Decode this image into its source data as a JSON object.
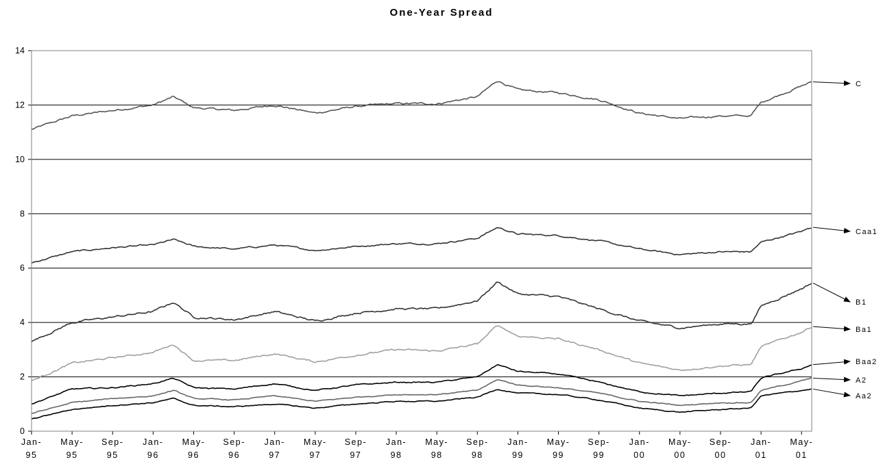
{
  "chart_data": {
    "type": "line",
    "title": "One-Year Spread",
    "xlabel": "",
    "ylabel": "",
    "ylim": [
      0,
      14
    ],
    "yticks": [
      0,
      2,
      4,
      6,
      8,
      10,
      12,
      14
    ],
    "x_range": [
      "1995-01",
      "2001-06"
    ],
    "x_tick_labels": [
      [
        "Jan-",
        "95"
      ],
      [
        "May-",
        "95"
      ],
      [
        "Sep-",
        "95"
      ],
      [
        "Jan-",
        "96"
      ],
      [
        "May-",
        "96"
      ],
      [
        "Sep-",
        "96"
      ],
      [
        "Jan-",
        "97"
      ],
      [
        "May-",
        "97"
      ],
      [
        "Sep-",
        "97"
      ],
      [
        "Jan-",
        "98"
      ],
      [
        "May-",
        "98"
      ],
      [
        "Sep-",
        "98"
      ],
      [
        "Jan-",
        "99"
      ],
      [
        "May-",
        "99"
      ],
      [
        "Sep-",
        "99"
      ],
      [
        "Jan-",
        "00"
      ],
      [
        "May-",
        "00"
      ],
      [
        "Sep-",
        "00"
      ],
      [
        "Jan-",
        "01"
      ],
      [
        "May-",
        "01"
      ]
    ],
    "grid": "horizontal major gridlines",
    "legend": "series labels at right end with arrows",
    "months": [
      "1995-01",
      "1995-05",
      "1995-09",
      "1996-01",
      "1996-03",
      "1996-05",
      "1996-09",
      "1997-01",
      "1997-05",
      "1997-09",
      "1998-01",
      "1998-05",
      "1998-09",
      "1998-11",
      "1999-01",
      "1999-05",
      "1999-09",
      "2000-01",
      "2000-05",
      "2000-09",
      "2000-12",
      "2001-01",
      "2001-05",
      "2001-06"
    ],
    "series": [
      {
        "name": "C",
        "color": "#555555",
        "values": [
          11.1,
          11.6,
          11.8,
          12.0,
          12.3,
          11.9,
          11.8,
          12.0,
          11.7,
          11.95,
          12.05,
          12.05,
          12.3,
          12.9,
          12.55,
          12.45,
          12.2,
          11.7,
          11.5,
          11.6,
          11.6,
          12.1,
          12.7,
          12.85
        ]
      },
      {
        "name": "Caa1",
        "color": "#333333",
        "values": [
          6.2,
          6.6,
          6.75,
          6.85,
          7.05,
          6.8,
          6.7,
          6.85,
          6.65,
          6.8,
          6.9,
          6.9,
          7.1,
          7.5,
          7.25,
          7.2,
          7.0,
          6.7,
          6.5,
          6.6,
          6.6,
          6.95,
          7.35,
          7.5
        ]
      },
      {
        "name": "B1",
        "color": "#333333",
        "values": [
          3.3,
          4.0,
          4.2,
          4.4,
          4.75,
          4.2,
          4.1,
          4.4,
          4.05,
          4.35,
          4.5,
          4.5,
          4.8,
          5.5,
          5.05,
          4.95,
          4.5,
          4.05,
          3.8,
          3.95,
          3.95,
          4.6,
          5.25,
          5.45
        ]
      },
      {
        "name": "Ba1",
        "color": "#a0a0a0",
        "values": [
          1.85,
          2.5,
          2.7,
          2.9,
          3.2,
          2.6,
          2.6,
          2.85,
          2.55,
          2.8,
          3.0,
          2.95,
          3.2,
          3.9,
          3.5,
          3.4,
          3.0,
          2.5,
          2.25,
          2.4,
          2.45,
          3.1,
          3.65,
          3.85
        ]
      },
      {
        "name": "Baa2",
        "color": "#000000",
        "values": [
          1.0,
          1.55,
          1.6,
          1.75,
          1.95,
          1.6,
          1.55,
          1.75,
          1.5,
          1.7,
          1.8,
          1.8,
          2.0,
          2.45,
          2.2,
          2.1,
          1.8,
          1.45,
          1.3,
          1.4,
          1.45,
          1.95,
          2.3,
          2.45
        ]
      },
      {
        "name": "A2",
        "color": "#666666",
        "values": [
          0.65,
          1.05,
          1.2,
          1.3,
          1.5,
          1.2,
          1.15,
          1.3,
          1.1,
          1.25,
          1.35,
          1.35,
          1.5,
          1.9,
          1.7,
          1.6,
          1.4,
          1.1,
          0.95,
          1.05,
          1.05,
          1.5,
          1.85,
          1.95
        ]
      },
      {
        "name": "Aa2",
        "color": "#000000",
        "values": [
          0.45,
          0.8,
          0.95,
          1.05,
          1.2,
          0.95,
          0.9,
          1.0,
          0.85,
          1.0,
          1.1,
          1.1,
          1.25,
          1.55,
          1.4,
          1.35,
          1.15,
          0.85,
          0.7,
          0.8,
          0.85,
          1.3,
          1.5,
          1.55
        ]
      }
    ]
  }
}
